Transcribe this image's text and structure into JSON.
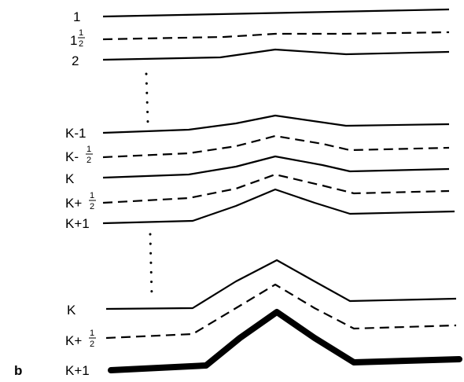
{
  "panel_label": "b",
  "levels": [
    {
      "main": "1",
      "frac": false
    },
    {
      "main": "1",
      "frac": true
    },
    {
      "main": "2",
      "frac": false
    },
    {
      "main": "K-1",
      "frac": false
    },
    {
      "main": "K-",
      "frac": true
    },
    {
      "main": "K",
      "frac": false
    },
    {
      "main": "K+",
      "frac": true
    },
    {
      "main": "K+1",
      "frac": false
    },
    {
      "main": "K",
      "frac": false
    },
    {
      "main": "K+",
      "frac": true
    },
    {
      "main": "K+1",
      "frac": false
    }
  ],
  "fraction": {
    "numerator": "1",
    "denominator": "2"
  },
  "line_styles": [
    "solid",
    "dashed",
    "solid",
    "solid",
    "dashed",
    "solid",
    "dashed",
    "solid",
    "solid",
    "dashed",
    "thick"
  ]
}
